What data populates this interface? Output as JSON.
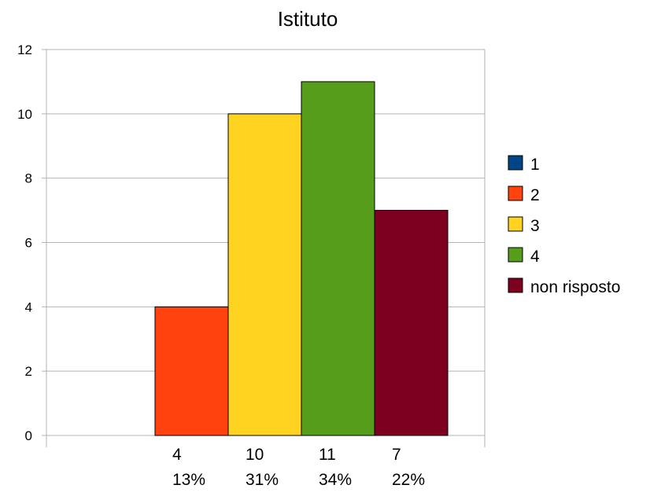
{
  "chart_data": {
    "type": "bar",
    "title": "Istituto",
    "xlabel": "",
    "ylabel": "",
    "ylim": [
      0,
      12
    ],
    "yticks": [
      0,
      2,
      4,
      6,
      8,
      10,
      12
    ],
    "grid": true,
    "legend_position": "right",
    "categories": [
      "1",
      "2",
      "3",
      "4",
      "non risposto"
    ],
    "series": [
      {
        "name": "1",
        "value": 0,
        "color": "#004586",
        "count_label": "",
        "percent_label": ""
      },
      {
        "name": "2",
        "value": 4,
        "color": "#ff420e",
        "count_label": "4",
        "percent_label": "13%"
      },
      {
        "name": "3",
        "value": 10,
        "color": "#ffd320",
        "count_label": "10",
        "percent_label": "31%"
      },
      {
        "name": "4",
        "value": 11,
        "color": "#579d1c",
        "count_label": "11",
        "percent_label": "34%"
      },
      {
        "name": "non risposto",
        "value": 7,
        "color": "#7e0021",
        "count_label": "7",
        "percent_label": "22%"
      }
    ]
  }
}
